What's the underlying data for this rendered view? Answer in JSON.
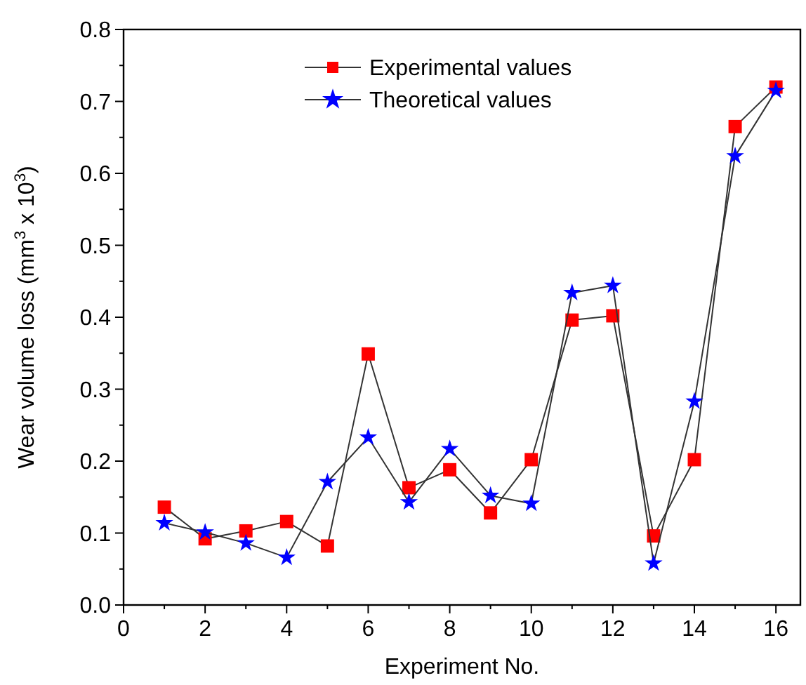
{
  "chart_data": {
    "type": "line",
    "xlabel": "Experiment No.",
    "ylabel": "Wear volume loss (mm$^{3}$ x 10$^{3}$)",
    "x": [
      1,
      2,
      3,
      4,
      5,
      6,
      7,
      8,
      9,
      10,
      11,
      12,
      13,
      14,
      15,
      16
    ],
    "series": [
      {
        "name": "Experimental values",
        "color": "#ff0000",
        "marker": "square",
        "values": [
          0.136,
          0.092,
          0.103,
          0.116,
          0.082,
          0.349,
          0.163,
          0.188,
          0.128,
          0.202,
          0.396,
          0.402,
          0.096,
          0.202,
          0.665,
          0.72
        ]
      },
      {
        "name": "Theoretical values",
        "color": "#0000ff",
        "marker": "star",
        "values": [
          0.114,
          0.101,
          0.086,
          0.066,
          0.171,
          0.233,
          0.143,
          0.217,
          0.152,
          0.141,
          0.434,
          0.444,
          0.058,
          0.283,
          0.624,
          0.715
        ]
      }
    ],
    "xlim": [
      0,
      16.6
    ],
    "xticks": [
      0,
      {
        "value": 1,
        "label": null
      },
      2,
      {
        "value": 3,
        "label": null
      },
      4,
      {
        "value": 5,
        "label": null
      },
      6,
      {
        "value": 7,
        "label": null
      },
      8,
      {
        "value": 9,
        "label": null
      },
      10,
      {
        "value": 11,
        "label": null
      },
      12,
      {
        "value": 13,
        "label": null
      },
      14,
      {
        "value": 15,
        "label": null
      },
      16
    ],
    "ylim": [
      0,
      0.8
    ],
    "yticks": [
      {
        "value": 0,
        "label": "0.0"
      },
      {
        "value": 0.05,
        "label": null
      },
      0.1,
      {
        "value": 0.15,
        "label": null
      },
      0.2,
      {
        "value": 0.25,
        "label": null
      },
      0.3,
      {
        "value": 0.35,
        "label": null
      },
      0.4,
      {
        "value": 0.45,
        "label": null
      },
      0.5,
      {
        "value": 0.55,
        "label": null
      },
      0.6,
      {
        "value": 0.65,
        "label": null
      },
      0.7,
      {
        "value": 0.75,
        "label": null
      },
      0.8
    ],
    "grid": false,
    "legend": "top",
    "line_style": "solid"
  }
}
